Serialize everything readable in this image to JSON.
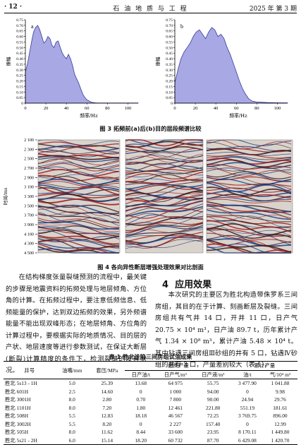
{
  "header": {
    "page": "· 12 ·",
    "journal": "石 油 地 质 与 工 程",
    "issue": "2025 年  第 3 期"
  },
  "fig3": {
    "caption": "图 3   拓频前(a)后(b)目的层段频谱比较",
    "ylabel": "振幅",
    "xlabel": "频率/Hz"
  },
  "chart_data": [
    {
      "type": "area",
      "panel_label": "a",
      "x": [
        0,
        2,
        4,
        6,
        8,
        10,
        12,
        14,
        16,
        18,
        20,
        22,
        24,
        26,
        28,
        30,
        32,
        34,
        36,
        38,
        40,
        42,
        44,
        46,
        48,
        50,
        52,
        54,
        56,
        58,
        60,
        62,
        64,
        66,
        68,
        70,
        80,
        90,
        100,
        110
      ],
      "values": [
        0.28,
        0.35,
        0.45,
        0.55,
        0.64,
        0.68,
        0.7,
        0.66,
        0.6,
        0.54,
        0.56,
        0.6,
        0.58,
        0.52,
        0.5,
        0.55,
        0.56,
        0.5,
        0.45,
        0.42,
        0.4,
        0.44,
        0.4,
        0.34,
        0.26,
        0.22,
        0.18,
        0.13,
        0.08,
        0.05,
        0.03,
        0.02,
        0.01,
        0.005,
        0.003,
        0.002,
        0.001,
        0.001,
        0.001,
        0.001
      ],
      "xlim": [
        0,
        110
      ],
      "ylim": [
        0,
        0.75
      ],
      "xticks": [
        0,
        20,
        40,
        60,
        80,
        100
      ],
      "yticks": [
        0,
        0.05,
        0.1,
        0.15,
        0.2,
        0.25,
        0.3,
        0.35,
        0.4,
        0.45,
        0.5,
        0.55,
        0.6,
        0.65,
        0.7,
        0.75
      ],
      "ytick_labels": [
        "0",
        "0.05",
        "0.10",
        "0.15",
        "0.20",
        "0.25",
        "0.30",
        "0.35",
        "0.40",
        "0.45",
        "0.50",
        "0.55",
        "0.60",
        "0.65",
        "0.70",
        "0.75"
      ]
    },
    {
      "type": "area",
      "panel_label": "b",
      "x": [
        0,
        3,
        6,
        9,
        12,
        15,
        18,
        21,
        24,
        27,
        30,
        33,
        36,
        39,
        42,
        45,
        48,
        51,
        54,
        57,
        60,
        63,
        66,
        69,
        72,
        75,
        80,
        90,
        100,
        110
      ],
      "values": [
        0.18,
        0.3,
        0.4,
        0.46,
        0.5,
        0.54,
        0.6,
        0.64,
        0.66,
        0.62,
        0.58,
        0.64,
        0.68,
        0.66,
        0.6,
        0.62,
        0.58,
        0.5,
        0.44,
        0.36,
        0.28,
        0.2,
        0.13,
        0.08,
        0.04,
        0.02,
        0.01,
        0.005,
        0.003,
        0.002
      ],
      "xlim": [
        0,
        110
      ],
      "ylim": [
        0,
        0.75
      ],
      "xticks": [
        0,
        20,
        40,
        60,
        80,
        100
      ],
      "yticks": [
        0,
        0.05,
        0.1,
        0.15,
        0.2,
        0.25,
        0.3,
        0.35,
        0.4,
        0.45,
        0.5,
        0.55,
        0.6,
        0.65,
        0.7,
        0.75
      ],
      "ytick_labels": [
        "0",
        "0.05",
        "0.10",
        "0.15",
        "0.20",
        "0.25",
        "0.30",
        "0.35",
        "0.40",
        "0.45",
        "0.50",
        "0.55",
        "0.60",
        "0.65",
        "0.70",
        "0.75"
      ]
    }
  ],
  "fig4": {
    "caption": "图 4   各向异性断层增强处理效果对比剖面",
    "ylabel": "时间/ms",
    "time_ticks": [
      "2 100",
      "2 300",
      "2 500",
      "2 700",
      "2 900",
      "3 100",
      "3 300",
      "3 500",
      "3 700",
      "3 900",
      "4 100",
      "4 300",
      "4 500"
    ]
  },
  "left_text": "在结构梯度张量裂缝预测的流程中，最关键的步骤是地震资料的拓频处理与地层倾角、方位角的计算。在拓频过程中，要注意低频信息、低频能量的保护，达到双边拓频的效果，另外频谱能量不能出现双峰形态；在地层倾角、方位角的计算过程中，要根据实际的地质情况、目的层的产状、地层速度等进行参数测试，在保证大断层(断裂)计算精度的条件下，检测裂缝的发育状况。",
  "section": {
    "number": "4",
    "title": "应用效果"
  },
  "right_text": "本次研究的主要区为胜北构造带侏罗系三间房组，其目的在于计算、刻画断层及裂缝。三间房组共有气井 14 口，开井 11 口，日产气 20.75 × 10⁴ m³，日产油 89.7 t，历年累计产气 1.34 × 10⁸ m³，累计产油 5.48 × 10⁴ t。其中钻遇三间房组Ⅲ砂组的井有 5 口，钻遇Ⅳ砂组的井有 3 口，产量差别较大（表 1）。",
  "table": {
    "caption": "表 1   胜北洼陷三间房组试油成果",
    "headers": {
      "well": "井号",
      "group_max": "最高产量",
      "group_cum": "累计产量",
      "cols": [
        "油嘴/mm",
        "套压/MPa",
        "日产油/t",
        "日产气/m³",
        "日产液/m³",
        "油/t",
        "气/10⁴ m³"
      ]
    },
    "rows": [
      [
        "胜北 5s13 - 1H",
        "5.0",
        "25.39",
        "13.68",
        "64 975",
        "55.75",
        "3 477.90",
        "1 041.88"
      ],
      [
        "胜北 601H",
        "2.5",
        "14.60",
        "0",
        "1 000",
        "94.00",
        "0",
        "9.98"
      ],
      [
        "胜北 3001H",
        "8.0",
        "2.80",
        "0.70",
        "7 800",
        "90.00",
        "24.94",
        "29.76"
      ],
      [
        "胜北 1101H",
        "8.0",
        "7.20",
        "1.80",
        "12 461",
        "221.80",
        "551.19",
        "181.61"
      ],
      [
        "胜北 508H",
        "5.5",
        "12.83",
        "18.18",
        "46 567",
        "72.25",
        "3 769.75",
        "896.00"
      ],
      [
        "胜北 3002H",
        "5.5",
        "8.20",
        "0",
        "2 227",
        "157.40",
        "0",
        "12.99"
      ],
      [
        "胜北 505H",
        "8.0",
        "11.62",
        "8.44",
        "33 600",
        "23.95",
        "8 170.11",
        "1 449.80"
      ],
      [
        "胜北 5s21 - 2H",
        "6.0",
        "15.14",
        "18.20",
        "60 732",
        "87.70",
        "6 429.08",
        "1 420.70"
      ]
    ]
  },
  "colors": {
    "fill": "#a8a8e4",
    "stroke": "#3a3aa0",
    "seis_red": "#a11818",
    "seis_blue": "#1c3e86"
  }
}
